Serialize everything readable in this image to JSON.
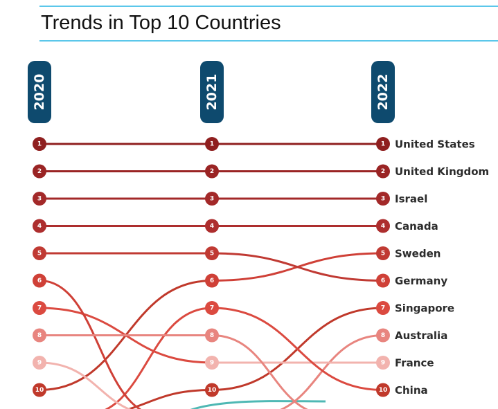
{
  "chart_data": {
    "type": "bump",
    "title": "Trends in Top 10 Countries",
    "years": [
      "2020",
      "2021",
      "2022"
    ],
    "ranks": [
      1,
      2,
      3,
      4,
      5,
      6,
      7,
      8,
      9,
      10
    ],
    "series": [
      {
        "name": "United States",
        "ranks": [
          1,
          1,
          1
        ]
      },
      {
        "name": "United Kingdom",
        "ranks": [
          2,
          2,
          2
        ]
      },
      {
        "name": "Israel",
        "ranks": [
          3,
          3,
          3
        ]
      },
      {
        "name": "Canada",
        "ranks": [
          4,
          4,
          4
        ]
      },
      {
        "name": "Sweden",
        "ranks": [
          10,
          6,
          5
        ]
      },
      {
        "name": "Germany",
        "ranks": [
          5,
          5,
          6
        ]
      },
      {
        "name": "Singapore",
        "ranks": [
          null,
          10,
          7
        ]
      },
      {
        "name": "Australia",
        "ranks": [
          null,
          null,
          8
        ]
      },
      {
        "name": "France",
        "ranks": [
          7,
          9,
          9
        ]
      },
      {
        "name": "China",
        "ranks": [
          null,
          7,
          10
        ]
      },
      {
        "name": "",
        "ranks": [
          6,
          null,
          null
        ]
      },
      {
        "name": "",
        "ranks": [
          8,
          8,
          null
        ]
      },
      {
        "name": "",
        "ranks": [
          9,
          null,
          null
        ]
      }
    ],
    "colors": {
      "year_badge": "#0e4a6e",
      "teal_line": "#4fb8b4",
      "rank_1": "#8f1f1f",
      "rank_2": "#9a2424",
      "rank_3": "#a32929",
      "rank_4": "#ad2e2e",
      "rank_5": "#c03a33",
      "rank_6": "#cf4037",
      "rank_7": "#db4a40",
      "rank_8": "#e8857f",
      "rank_9": "#f2b3ae",
      "rank_10": "#c0392b"
    }
  }
}
